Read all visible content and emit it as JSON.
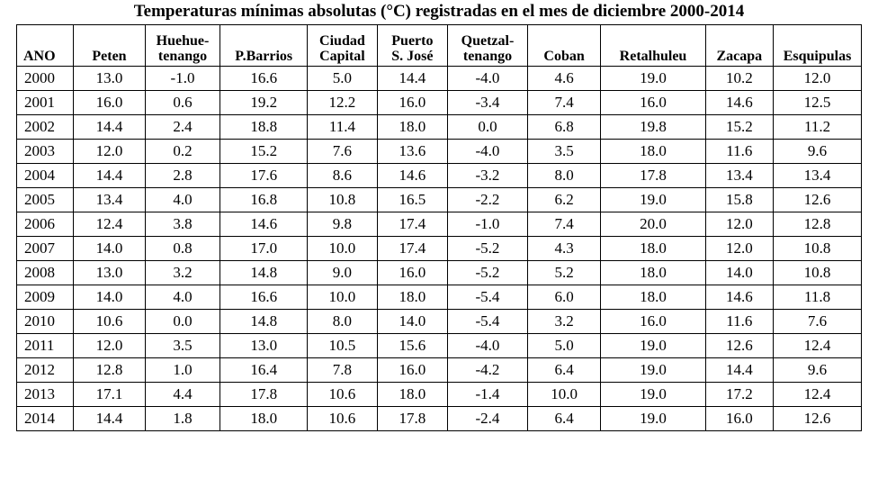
{
  "title": "Temperaturas mínimas absolutas (°C) registradas en el mes de diciembre 2000-2014",
  "columns": [
    {
      "l1": "",
      "l2": "ANO"
    },
    {
      "l1": "",
      "l2": "Peten"
    },
    {
      "l1": "Huehue-",
      "l2": "tenango"
    },
    {
      "l1": "",
      "l2": "P.Barrios"
    },
    {
      "l1": "Ciudad",
      "l2": "Capital"
    },
    {
      "l1": "Puerto",
      "l2": "S. José"
    },
    {
      "l1": "Quetzal-",
      "l2": "tenango"
    },
    {
      "l1": "",
      "l2": "Coban"
    },
    {
      "l1": "",
      "l2": "Retalhuleu"
    },
    {
      "l1": "",
      "l2": "Zacapa"
    },
    {
      "l1": "",
      "l2": "Esquipulas"
    }
  ],
  "rows": [
    [
      "2000",
      "13.0",
      "-1.0",
      "16.6",
      "5.0",
      "14.4",
      "-4.0",
      "4.6",
      "19.0",
      "10.2",
      "12.0"
    ],
    [
      "2001",
      "16.0",
      "0.6",
      "19.2",
      "12.2",
      "16.0",
      "-3.4",
      "7.4",
      "16.0",
      "14.6",
      "12.5"
    ],
    [
      "2002",
      "14.4",
      "2.4",
      "18.8",
      "11.4",
      "18.0",
      "0.0",
      "6.8",
      "19.8",
      "15.2",
      "11.2"
    ],
    [
      "2003",
      "12.0",
      "0.2",
      "15.2",
      "7.6",
      "13.6",
      "-4.0",
      "3.5",
      "18.0",
      "11.6",
      "9.6"
    ],
    [
      "2004",
      "14.4",
      "2.8",
      "17.6",
      "8.6",
      "14.6",
      "-3.2",
      "8.0",
      "17.8",
      "13.4",
      "13.4"
    ],
    [
      "2005",
      "13.4",
      "4.0",
      "16.8",
      "10.8",
      "16.5",
      "-2.2",
      "6.2",
      "19.0",
      "15.8",
      "12.6"
    ],
    [
      "2006",
      "12.4",
      "3.8",
      "14.6",
      "9.8",
      "17.4",
      "-1.0",
      "7.4",
      "20.0",
      "12.0",
      "12.8"
    ],
    [
      "2007",
      "14.0",
      "0.8",
      "17.0",
      "10.0",
      "17.4",
      "-5.2",
      "4.3",
      "18.0",
      "12.0",
      "10.8"
    ],
    [
      "2008",
      "13.0",
      "3.2",
      "14.8",
      "9.0",
      "16.0",
      "-5.2",
      "5.2",
      "18.0",
      "14.0",
      "10.8"
    ],
    [
      "2009",
      "14.0",
      "4.0",
      "16.6",
      "10.0",
      "18.0",
      "-5.4",
      "6.0",
      "18.0",
      "14.6",
      "11.8"
    ],
    [
      "2010",
      "10.6",
      "0.0",
      "14.8",
      "8.0",
      "14.0",
      "-5.4",
      "3.2",
      "16.0",
      "11.6",
      "7.6"
    ],
    [
      "2011",
      "12.0",
      "3.5",
      "13.0",
      "10.5",
      "15.6",
      "-4.0",
      "5.0",
      "19.0",
      "12.6",
      "12.4"
    ],
    [
      "2012",
      "12.8",
      "1.0",
      "16.4",
      "7.8",
      "16.0",
      "-4.2",
      "6.4",
      "19.0",
      "14.4",
      "9.6"
    ],
    [
      "2013",
      "17.1",
      "4.4",
      "17.8",
      "10.6",
      "18.0",
      "-1.4",
      "10.0",
      "19.0",
      "17.2",
      "12.4"
    ],
    [
      "2014",
      "14.4",
      "1.8",
      "18.0",
      "10.6",
      "17.8",
      "-2.4",
      "6.4",
      "19.0",
      "16.0",
      "12.6"
    ]
  ]
}
